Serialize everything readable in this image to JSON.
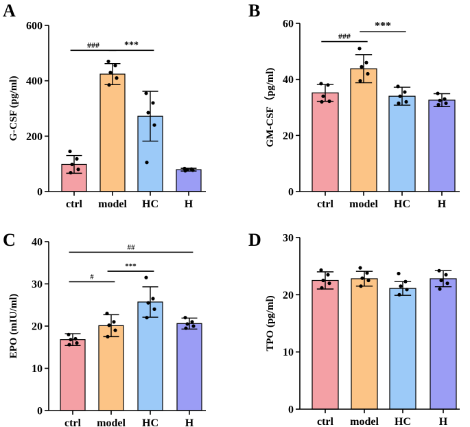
{
  "chart_data": [
    {
      "type": "bar",
      "panel": "A",
      "ylabel": "G-CSF (pg/ml)",
      "categories": [
        "ctrl",
        "model",
        "HC",
        "H"
      ],
      "colors": [
        "#f4a0a5",
        "#fcc486",
        "#9ccaf8",
        "#9b9df5"
      ],
      "values": [
        98,
        424,
        272,
        79
      ],
      "errors": [
        32,
        38,
        90,
        5
      ],
      "points": [
        [
          145,
          118,
          98,
          80,
          68
        ],
        [
          470,
          455,
          430,
          410,
          385
        ],
        [
          355,
          320,
          285,
          240,
          105
        ],
        [
          83,
          81,
          79,
          77,
          75
        ]
      ],
      "ylim": [
        0,
        600
      ],
      "yticks": [
        "0",
        "200",
        "400",
        "600"
      ],
      "comparisons": [
        {
          "from": 0,
          "to": 1,
          "label": "###",
          "level": 510
        },
        {
          "from": 1,
          "to": 2,
          "label": "***",
          "level": 510
        }
      ]
    },
    {
      "type": "bar",
      "panel": "B",
      "ylabel": "GM-CSF（pg/ml)",
      "categories": [
        "ctrl",
        "model",
        "HC",
        "H"
      ],
      "colors": [
        "#f4a0a5",
        "#fcc486",
        "#9ccaf8",
        "#9b9df5"
      ],
      "values": [
        35.2,
        43.8,
        34.0,
        32.6
      ],
      "errors": [
        3.0,
        5.0,
        3.2,
        2.3
      ],
      "points": [
        [
          38.5,
          38.0,
          34.0,
          32.2,
          32.0
        ],
        [
          51.0,
          46.0,
          44.5,
          42.0,
          39.5
        ],
        [
          37.5,
          35.5,
          34.0,
          32.0,
          31.5
        ],
        [
          35.0,
          33.0,
          32.5,
          31.5,
          31.0
        ]
      ],
      "ylim": [
        0,
        60
      ],
      "yticks": [
        "0",
        "20",
        "40",
        "60"
      ],
      "comparisons": [
        {
          "from": 0,
          "to": 1,
          "label": "###",
          "level": 53.5
        },
        {
          "from": 1,
          "to": 2,
          "label": "***",
          "level": 57
        }
      ]
    },
    {
      "type": "bar",
      "panel": "C",
      "ylabel": "EPO (mIU/ml)",
      "categories": [
        "ctrl",
        "model",
        "HC",
        "H"
      ],
      "colors": [
        "#f4a0a5",
        "#fcc486",
        "#9ccaf8",
        "#9b9df5"
      ],
      "values": [
        16.8,
        20.1,
        25.7,
        20.6
      ],
      "errors": [
        1.4,
        2.6,
        3.6,
        1.3
      ],
      "points": [
        [
          18.0,
          17.0,
          16.8,
          16.0,
          15.6
        ],
        [
          23.0,
          21.0,
          20.2,
          19.0,
          17.5
        ],
        [
          31.5,
          26.5,
          25.5,
          24.0,
          22.0
        ],
        [
          22.0,
          21.0,
          20.5,
          20.0,
          19.5
        ]
      ],
      "ylim": [
        0,
        40
      ],
      "yticks": [
        "0",
        "10",
        "20",
        "30",
        "40"
      ],
      "comparisons": [
        {
          "from": 0,
          "to": 1,
          "label": "#",
          "level": 30.5
        },
        {
          "from": 1,
          "to": 2,
          "label": "***",
          "level": 33
        },
        {
          "from": 0,
          "to": 3,
          "label": "##",
          "level": 37.5
        }
      ]
    },
    {
      "type": "bar",
      "panel": "D",
      "ylabel": "TPO (pg/ml)",
      "categories": [
        "ctrl",
        "model",
        "HC",
        "H"
      ],
      "colors": [
        "#f4a0a5",
        "#fcc486",
        "#9ccaf8",
        "#9b9df5"
      ],
      "values": [
        22.5,
        22.8,
        21.1,
        22.8
      ],
      "errors": [
        1.5,
        1.3,
        1.2,
        1.4
      ],
      "points": [
        [
          24.3,
          23.5,
          22.5,
          22.0,
          21.2
        ],
        [
          24.7,
          23.8,
          22.9,
          22.5,
          21.5
        ],
        [
          23.7,
          22.3,
          21.5,
          20.9,
          20.0
        ],
        [
          24.2,
          23.5,
          22.5,
          22.0,
          21.0
        ]
      ],
      "ylim": [
        0,
        30
      ],
      "yticks": [
        "0",
        "10",
        "20",
        "30"
      ],
      "comparisons": []
    }
  ]
}
